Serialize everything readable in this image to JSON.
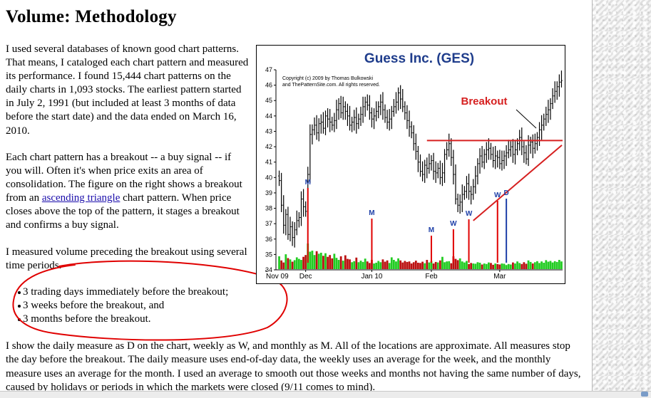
{
  "heading": "Volume: Methodology",
  "paragraph1": "I used several databases of known good chart patterns. That means, I cataloged each chart pattern and measured its performance. I found 15,444 chart patterns on the daily charts in 1,093 stocks. The earliest pattern started in July 2, 1991 (but included at least 3 months of data before the start date) and the data ended on March 16, 2010.",
  "paragraph2": {
    "before": "Each chart pattern has a breakout -- a buy signal -- if you will. Often it's when price exits an area of consolidation. The figure on the right shows a breakout from an ",
    "link": "ascending triangle",
    "after": " chart pattern. When price closes above the top of the pattern, it stages a breakout and confirms a buy signal."
  },
  "paragraph3": "I measured volume preceding the breakout using several time periods.",
  "bullets": [
    "3 trading days immediately before the breakout;",
    "3 weeks before the breakout, and",
    "3 months before the breakout."
  ],
  "paragraph4": "I show the daily measure as D on the chart, weekly as W, and monthly as M. All of the locations are approximate. All measures stop the day before the breakout. The daily measure uses end-of-day data, the weekly uses an average for the week, and the monthly measure uses an average for the month. I used an average to smooth out those weeks and months not having the same number of days, caused by holidays or periods in which the markets were closed (9/11 comes to mind).",
  "colors": {
    "title": "#1f3d8c",
    "breakout": "#d62020",
    "up": "#22cc22",
    "down": "#bb1111",
    "marker": "#1e3fa8",
    "annotation": "#e00000"
  },
  "chart_data": {
    "type": "candlestick",
    "title": "Guess Inc. (GES)",
    "copyright": [
      "Copyright (c) 2009 by Thomas Bulkowski",
      "and ThePatternSite.com. All rights reserved."
    ],
    "ylim": [
      34,
      47
    ],
    "y_ticks": [
      34,
      35,
      36,
      37,
      38,
      39,
      40,
      41,
      42,
      43,
      44,
      45,
      46,
      47
    ],
    "x_ticks": [
      "Nov 09",
      "Dec",
      "Jan 10",
      "Feb",
      "Mar"
    ],
    "breakout_label": "Breakout",
    "resistance_level": 42.4,
    "support_line": {
      "from": [
        88,
        37.2
      ],
      "to": [
        126,
        42.1
      ]
    },
    "close": [
      39.8,
      38.2,
      36.9,
      37.6,
      36.3,
      36.8,
      36.1,
      36.6,
      37.2,
      37.4,
      38.6,
      38.1,
      37.8,
      40.2,
      42.8,
      43.1,
      43.4,
      42.9,
      43.5,
      43.6,
      43.2,
      44.0,
      43.8,
      43.6,
      43.4,
      43.7,
      44.4,
      44.8,
      44.2,
      44.6,
      44.3,
      44.0,
      43.4,
      43.6,
      43.9,
      43.5,
      43.8,
      44.1,
      44.6,
      44.9,
      44.7,
      44.2,
      43.8,
      44.0,
      44.3,
      44.6,
      44.9,
      44.4,
      43.9,
      43.6,
      43.8,
      44.3,
      44.6,
      44.9,
      45.5,
      45.1,
      44.6,
      44.2,
      43.7,
      43.3,
      42.9,
      42.2,
      41.7,
      41.0,
      40.4,
      40.2,
      40.8,
      40.6,
      40.9,
      41.1,
      40.4,
      40.3,
      40.6,
      40.0,
      40.3,
      41.5,
      41.8,
      42.2,
      41.3,
      40.2,
      38.6,
      38.2,
      38.4,
      38.9,
      39.1,
      39.6,
      39.1,
      38.9,
      39.4,
      40.1,
      40.9,
      41.4,
      41.0,
      41.5,
      41.8,
      41.9,
      41.5,
      41.1,
      41.4,
      41.3,
      40.9,
      41.1,
      41.4,
      41.6,
      41.8,
      42.0,
      41.5,
      41.8,
      42.2,
      42.6,
      42.0,
      41.6,
      41.2,
      42.1,
      42.3,
      41.9,
      42.2,
      42.6,
      43.1,
      43.4,
      43.8,
      44.1,
      44.4,
      44.8,
      45.3,
      45.6,
      45.9,
      46.2,
      46.3
    ],
    "volume": [
      0.5,
      0.34,
      0.26,
      0.58,
      0.43,
      0.38,
      0.29,
      0.35,
      0.46,
      0.4,
      0.36,
      0.48,
      0.55,
      1.0,
      0.68,
      0.72,
      0.55,
      0.7,
      0.6,
      0.64,
      0.52,
      0.62,
      0.48,
      0.55,
      0.42,
      0.6,
      0.44,
      0.36,
      0.5,
      0.33,
      0.54,
      0.4,
      0.38,
      0.27,
      0.31,
      0.45,
      0.27,
      0.33,
      0.28,
      0.41,
      0.3,
      0.24,
      0.36,
      0.22,
      0.25,
      0.32,
      0.27,
      0.38,
      0.29,
      0.34,
      0.24,
      0.46,
      0.36,
      0.3,
      0.42,
      0.34,
      0.26,
      0.32,
      0.28,
      0.3,
      0.22,
      0.27,
      0.33,
      0.25,
      0.24,
      0.29,
      0.23,
      0.36,
      0.26,
      0.31,
      0.22,
      0.28,
      0.26,
      0.34,
      0.48,
      0.27,
      0.3,
      0.31,
      0.23,
      0.5,
      0.4,
      0.35,
      0.42,
      0.3,
      0.26,
      0.32,
      0.2,
      0.24,
      0.22,
      0.21,
      0.27,
      0.25,
      0.18,
      0.22,
      0.2,
      0.26,
      0.24,
      0.17,
      0.22,
      0.2,
      0.18,
      0.22,
      0.21,
      0.16,
      0.2,
      0.18,
      0.26,
      0.22,
      0.3,
      0.24,
      0.2,
      0.27,
      0.21,
      0.34,
      0.28,
      0.22,
      0.27,
      0.31,
      0.24,
      0.3,
      0.25,
      0.35,
      0.29,
      0.32,
      0.26,
      0.31,
      0.28,
      0.36,
      0.3
    ],
    "volume_markers": [
      {
        "label": "M",
        "index": 13,
        "color": "red"
      },
      {
        "label": "M",
        "index": 42,
        "color": "red"
      },
      {
        "label": "M",
        "index": 69,
        "color": "red"
      },
      {
        "label": "W",
        "index": 79,
        "color": "red"
      },
      {
        "label": "W",
        "index": 86,
        "color": "red"
      },
      {
        "label": "W",
        "index": 99,
        "color": "red"
      },
      {
        "label": "D",
        "index": 103,
        "color": "blue"
      }
    ]
  }
}
